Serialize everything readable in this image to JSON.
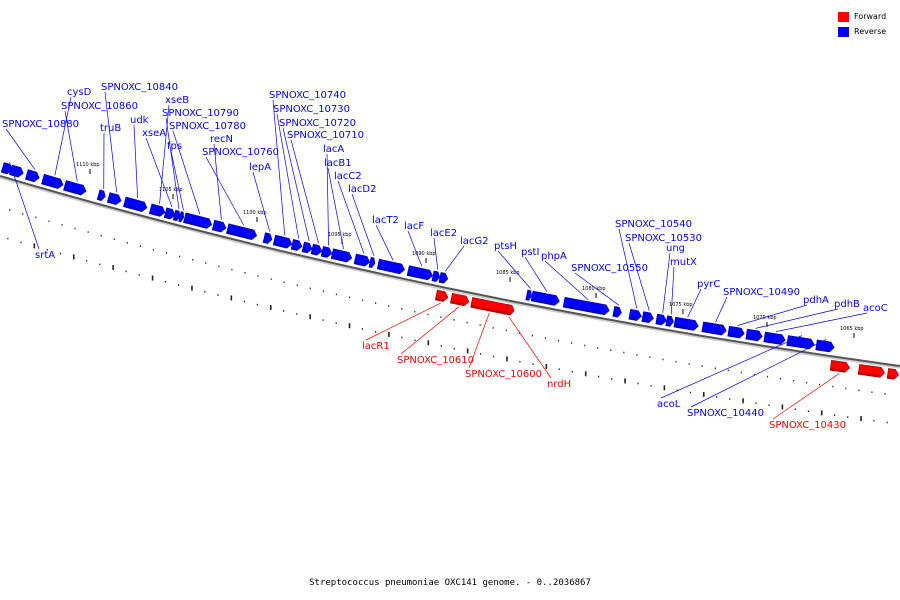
{
  "caption": "Streptococcus pneumoniae OXC141 genome. - 0..2036867",
  "legend": [
    {
      "label": "Forward",
      "color": "#ff0000"
    },
    {
      "label": "Reverse",
      "color": "#0000ff"
    }
  ],
  "colors": {
    "forward": "#ff0000",
    "reverse": "#0000ff",
    "backbone": "#888888"
  },
  "scale_labels": [
    "1110 kbp",
    "1105 kbp",
    "1100 kbp",
    "1095 kbp",
    "1090 kbp",
    "1085 kbp",
    "1080 kbp",
    "1075 kbp",
    "1070 kbp",
    "1065 kbp"
  ],
  "genes": [
    {
      "name": "SPNOXC_10880",
      "strand": "reverse"
    },
    {
      "name": "srtA",
      "strand": "reverse"
    },
    {
      "name": "cysD",
      "strand": "reverse"
    },
    {
      "name": "SPNOXC_10860",
      "strand": "reverse"
    },
    {
      "name": "truB",
      "strand": "reverse"
    },
    {
      "name": "SPNOXC_10840",
      "strand": "reverse"
    },
    {
      "name": "udk",
      "strand": "reverse"
    },
    {
      "name": "xseB",
      "strand": "reverse"
    },
    {
      "name": "xseA",
      "strand": "reverse"
    },
    {
      "name": "SPNOXC_10790",
      "strand": "reverse"
    },
    {
      "name": "fps",
      "strand": "reverse"
    },
    {
      "name": "SPNOXC_10780",
      "strand": "reverse"
    },
    {
      "name": "recN",
      "strand": "reverse"
    },
    {
      "name": "SPNOXC_10760",
      "strand": "reverse"
    },
    {
      "name": "lepA",
      "strand": "reverse"
    },
    {
      "name": "SPNOXC_10740",
      "strand": "reverse"
    },
    {
      "name": "SPNOXC_10730",
      "strand": "reverse"
    },
    {
      "name": "SPNOXC_10720",
      "strand": "reverse"
    },
    {
      "name": "SPNOXC_10710",
      "strand": "reverse"
    },
    {
      "name": "lacA",
      "strand": "reverse"
    },
    {
      "name": "lacB1",
      "strand": "reverse"
    },
    {
      "name": "lacC2",
      "strand": "reverse"
    },
    {
      "name": "lacD2",
      "strand": "reverse"
    },
    {
      "name": "lacT2",
      "strand": "reverse"
    },
    {
      "name": "lacF",
      "strand": "reverse"
    },
    {
      "name": "lacE2",
      "strand": "reverse"
    },
    {
      "name": "lacG2",
      "strand": "reverse"
    },
    {
      "name": "lacR1",
      "strand": "forward"
    },
    {
      "name": "SPNOXC_10610",
      "strand": "forward"
    },
    {
      "name": "SPNOXC_10600",
      "strand": "forward"
    },
    {
      "name": "nrdH",
      "strand": "forward"
    },
    {
      "name": "ptsH",
      "strand": "reverse"
    },
    {
      "name": "pstI",
      "strand": "reverse"
    },
    {
      "name": "phpA",
      "strand": "reverse"
    },
    {
      "name": "SPNOXC_10550",
      "strand": "reverse"
    },
    {
      "name": "SPNOXC_10540",
      "strand": "reverse"
    },
    {
      "name": "SPNOXC_10530",
      "strand": "reverse"
    },
    {
      "name": "ung",
      "strand": "reverse"
    },
    {
      "name": "mutX",
      "strand": "reverse"
    },
    {
      "name": "pyrC",
      "strand": "reverse"
    },
    {
      "name": "SPNOXC_10490",
      "strand": "reverse"
    },
    {
      "name": "pdhA",
      "strand": "reverse"
    },
    {
      "name": "pdhB",
      "strand": "reverse"
    },
    {
      "name": "acoC",
      "strand": "reverse"
    },
    {
      "name": "acoL",
      "strand": "reverse"
    },
    {
      "name": "SPNOXC_10440",
      "strand": "reverse"
    },
    {
      "name": "SPNOXC_10430",
      "strand": "forward"
    }
  ]
}
